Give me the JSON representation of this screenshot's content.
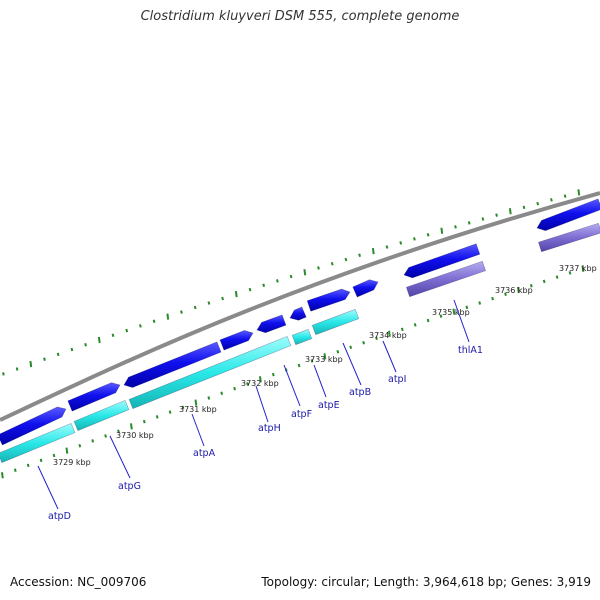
{
  "title": "Clostridium kluyveri DSM 555, complete genome",
  "footer": {
    "accession": "Accession: NC_009706",
    "summary": "Topology: circular; Length: 3,964,618 bp; Genes: 3,919"
  },
  "colors": {
    "backbone": "#8a8a8a",
    "tick": "#2b8a2b",
    "cds": "#1111ee",
    "cds_rna_cyan": "#22e6e6",
    "cds_rna_purple": "#8070d0",
    "label_line": "#2222cc"
  },
  "scale": {
    "labels": [
      "3729 kbp",
      "3730 kbp",
      "3731 kbp",
      "3732 kbp",
      "3733 kbp",
      "3734 kbp",
      "3735 kbp",
      "3736 kbp",
      "3737 kbp"
    ]
  },
  "genes": [
    "atpD",
    "atpG",
    "atpA",
    "atpH",
    "atpF",
    "atpE",
    "atpB",
    "atpI",
    "thlA1"
  ]
}
